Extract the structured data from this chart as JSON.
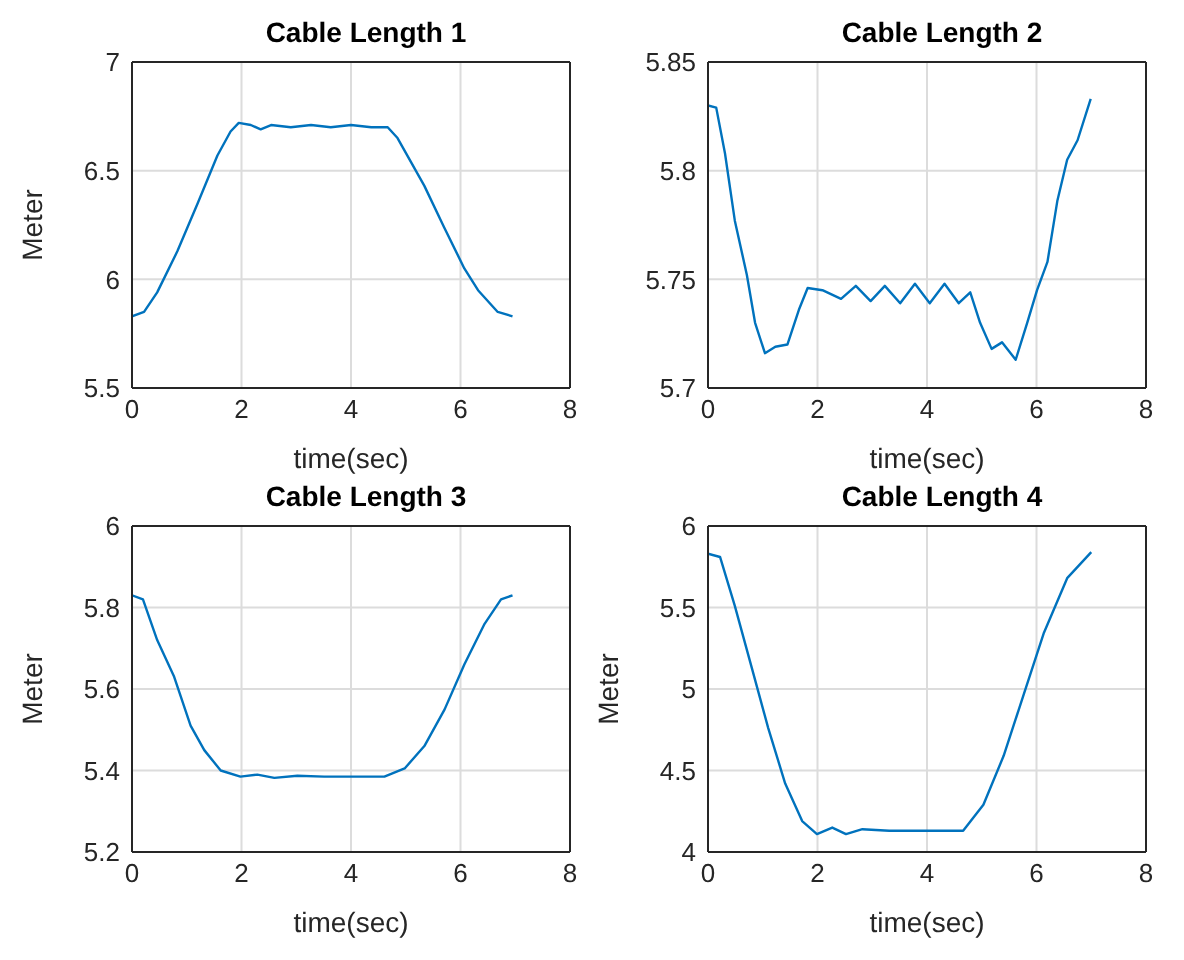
{
  "chart_data": [
    {
      "type": "line",
      "title": "Cable Length 1",
      "xlabel": "time(sec)",
      "ylabel": "Meter",
      "xlim": [
        0,
        8
      ],
      "xticks": [
        0,
        2,
        4,
        6,
        8
      ],
      "ylim": [
        5.5,
        7
      ],
      "yticks": [
        5.5,
        6,
        6.5,
        7
      ],
      "grid": true,
      "x": [
        0,
        0.22,
        0.46,
        0.83,
        1.2,
        1.56,
        1.8,
        1.95,
        2.17,
        2.35,
        2.54,
        2.9,
        3.27,
        3.63,
        4.0,
        4.37,
        4.67,
        4.85,
        5.34,
        5.7,
        6.07,
        6.32,
        6.68,
        6.95
      ],
      "series": [
        {
          "color": "#0072bd",
          "values": [
            5.83,
            5.85,
            5.94,
            6.13,
            6.35,
            6.57,
            6.68,
            6.72,
            6.71,
            6.69,
            6.71,
            6.7,
            6.71,
            6.7,
            6.71,
            6.7,
            6.7,
            6.65,
            6.43,
            6.24,
            6.05,
            5.95,
            5.85,
            5.83
          ]
        }
      ]
    },
    {
      "type": "line",
      "title": "Cable Length 2",
      "xlabel": "time(sec)",
      "xlim": [
        0,
        8
      ],
      "xticks": [
        0,
        2,
        4,
        6,
        8
      ],
      "ylim": [
        5.7,
        5.85
      ],
      "yticks": [
        5.7,
        5.75,
        5.8,
        5.85
      ],
      "grid": true,
      "x": [
        0,
        0.15,
        0.31,
        0.49,
        0.71,
        0.86,
        1.04,
        1.23,
        1.45,
        1.66,
        1.82,
        2.09,
        2.43,
        2.7,
        2.97,
        3.23,
        3.51,
        3.78,
        4.05,
        4.32,
        4.58,
        4.79,
        4.97,
        5.18,
        5.37,
        5.62,
        5.83,
        6.01,
        6.2,
        6.38,
        6.56,
        6.75,
        6.99
      ],
      "series": [
        {
          "color": "#0072bd",
          "values": [
            5.83,
            5.829,
            5.808,
            5.777,
            5.752,
            5.73,
            5.716,
            5.719,
            5.72,
            5.736,
            5.746,
            5.745,
            5.741,
            5.747,
            5.74,
            5.747,
            5.739,
            5.748,
            5.739,
            5.748,
            5.739,
            5.744,
            5.73,
            5.718,
            5.721,
            5.713,
            5.73,
            5.745,
            5.758,
            5.786,
            5.805,
            5.814,
            5.833
          ]
        }
      ]
    },
    {
      "type": "line",
      "title": "Cable Length 3",
      "xlabel": "time(sec)",
      "ylabel": "Meter",
      "xlim": [
        0,
        8
      ],
      "xticks": [
        0,
        2,
        4,
        6,
        8
      ],
      "ylim": [
        5.2,
        6
      ],
      "yticks": [
        5.2,
        5.4,
        5.6,
        5.8,
        6
      ],
      "grid": true,
      "x": [
        0,
        0.2,
        0.46,
        0.77,
        1.07,
        1.32,
        1.62,
        1.98,
        2.29,
        2.6,
        3.02,
        3.51,
        4.61,
        4.98,
        5.34,
        5.71,
        6.07,
        6.44,
        6.74,
        6.95
      ],
      "series": [
        {
          "color": "#0072bd",
          "values": [
            5.83,
            5.82,
            5.72,
            5.63,
            5.51,
            5.45,
            5.4,
            5.385,
            5.39,
            5.382,
            5.387,
            5.385,
            5.385,
            5.405,
            5.46,
            5.55,
            5.66,
            5.76,
            5.82,
            5.83
          ]
        }
      ]
    },
    {
      "type": "line",
      "title": "Cable Length 4",
      "xlabel": "time(sec)",
      "ylabel": "Meter",
      "xlim": [
        0,
        8
      ],
      "xticks": [
        0,
        2,
        4,
        6,
        8
      ],
      "ylim": [
        4,
        6
      ],
      "yticks": [
        4,
        4.5,
        5,
        5.5,
        6
      ],
      "grid": true,
      "x": [
        0,
        0.22,
        0.49,
        0.8,
        1.1,
        1.41,
        1.72,
        1.99,
        2.27,
        2.52,
        2.82,
        3.31,
        3.93,
        4.66,
        5.03,
        5.4,
        5.77,
        6.13,
        6.56,
        7.0
      ],
      "series": [
        {
          "color": "#0072bd",
          "values": [
            5.83,
            5.81,
            5.51,
            5.13,
            4.76,
            4.42,
            4.19,
            4.11,
            4.15,
            4.11,
            4.14,
            4.13,
            4.13,
            4.13,
            4.29,
            4.59,
            4.97,
            5.34,
            5.68,
            5.84
          ]
        }
      ]
    }
  ]
}
